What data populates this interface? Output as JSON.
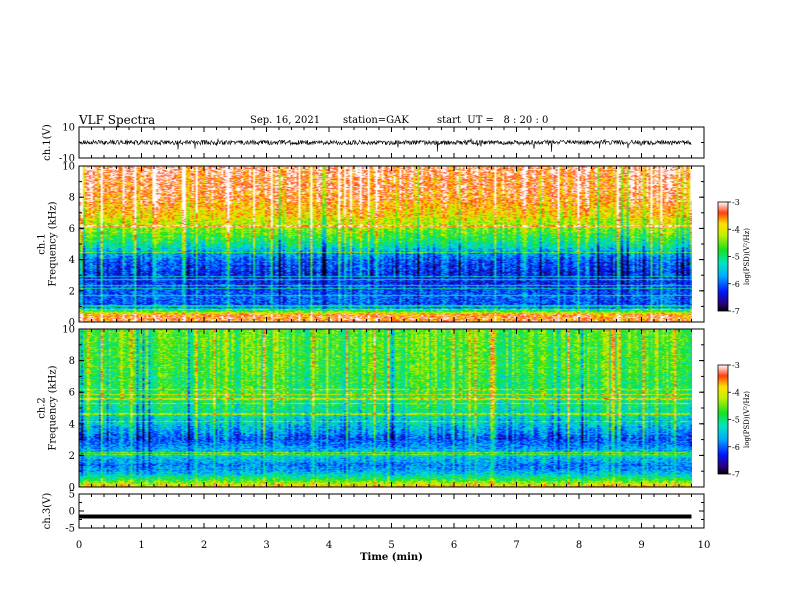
{
  "header": {
    "title": "VLF Spectra",
    "date": "Sep. 16, 2021",
    "station": "station=GAK",
    "start": "start  UT =   8 : 20 : 0"
  },
  "chart_data": [
    {
      "type": "line",
      "panel": "ch1-waveform",
      "ylabel": "ch.1(V)",
      "ylim": [
        -10,
        10
      ],
      "yticks": [
        "10",
        "-10"
      ],
      "xlim": [
        0,
        10
      ],
      "trace_color": "#000000",
      "baseline": 0,
      "noise_amplitude": 1.5,
      "data_end_min": 9.8
    },
    {
      "type": "heatmap",
      "panel": "ch1-spectrogram",
      "ylabel": "ch.1\nFrequency (kHz)",
      "ylim": [
        0,
        10
      ],
      "yticks": [
        "0",
        "2",
        "4",
        "6",
        "8",
        "10"
      ],
      "xlim": [
        0,
        10
      ],
      "data_end_min": 9.8,
      "colorbar": {
        "label": "log(PSD)(V²/Hz)",
        "ticks": [
          "-3",
          "-4",
          "-5",
          "-6",
          "-7"
        ],
        "range": [
          -7,
          -3
        ]
      },
      "profile_freq_khz": [
        0,
        0.5,
        1,
        1.5,
        2,
        3,
        4,
        4.5,
        5,
        6,
        7,
        8,
        10
      ],
      "profile_log_psd": [
        -3.3,
        -3.5,
        -6.2,
        -6.0,
        -6.1,
        -6.3,
        -6.0,
        -5.6,
        -5.1,
        -4.4,
        -3.8,
        -3.4,
        -3.2
      ]
    },
    {
      "type": "heatmap",
      "panel": "ch2-spectrogram",
      "ylabel": "ch.2\nFrequency (kHz)",
      "ylim": [
        0,
        10
      ],
      "yticks": [
        "0",
        "2",
        "4",
        "6",
        "8",
        "10"
      ],
      "xlim": [
        0,
        10
      ],
      "data_end_min": 9.8,
      "colorbar": {
        "label": "log(PSD)(V²/Hz)",
        "ticks": [
          "-3",
          "-4",
          "-5",
          "-6",
          "-7"
        ],
        "range": [
          -7,
          -3
        ]
      },
      "profile_freq_khz": [
        0,
        0.5,
        1,
        1.5,
        2,
        3,
        4,
        5,
        6,
        7,
        8,
        10
      ],
      "profile_log_psd": [
        -3.6,
        -4.8,
        -5.7,
        -5.9,
        -5.3,
        -6.1,
        -5.5,
        -5.1,
        -4.8,
        -4.8,
        -4.7,
        -4.6
      ]
    },
    {
      "type": "line",
      "panel": "ch3-waveform",
      "ylabel": "ch.3(V)",
      "ylim": [
        -5,
        5
      ],
      "yticks": [
        "5",
        "0",
        "-5"
      ],
      "xlim": [
        0,
        10
      ],
      "xlabel": "Time (min)",
      "xticks": [
        "0",
        "1",
        "2",
        "3",
        "4",
        "5",
        "6",
        "7",
        "8",
        "9",
        "10"
      ],
      "trace_color": "#000000",
      "baseline": -1.6,
      "data_end_min": 9.8
    }
  ]
}
